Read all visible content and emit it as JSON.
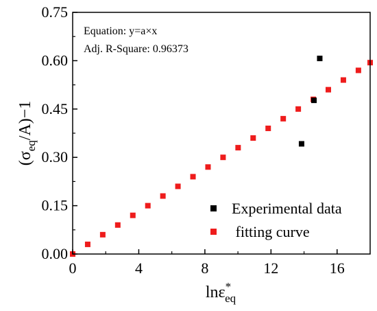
{
  "chart_data": {
    "type": "scatter",
    "xlabel": {
      "base": "lnε",
      "sup": "*",
      "sub": "eq"
    },
    "ylabel": {
      "open": "(σ",
      "sub": "eq",
      "close": "/A)−1"
    },
    "xlim": [
      0,
      18
    ],
    "ylim": [
      0,
      0.75
    ],
    "x_ticks": [
      0,
      4,
      8,
      12,
      16
    ],
    "x_tick_labels": [
      "0",
      "4",
      "8",
      "12",
      "16"
    ],
    "y_ticks": [
      0,
      0.15,
      0.3,
      0.45,
      0.6,
      0.75
    ],
    "y_tick_labels": [
      "0.00",
      "0.15",
      "0.30",
      "0.45",
      "0.60",
      "0.75"
    ],
    "grid": false,
    "legend_position": "bottom-right",
    "annotations": [
      "Equation: y=a×x",
      "Adj. R-Square: 0.96373"
    ],
    "series": [
      {
        "name": "Experimental data",
        "color": "#000000",
        "marker": "square",
        "x": [
          13.85,
          14.6,
          14.95
        ],
        "y": [
          0.342,
          0.477,
          0.607
        ]
      },
      {
        "name": " fitting curve",
        "color": "#ee1c1c",
        "marker": "square",
        "x": [
          0,
          0.91,
          1.82,
          2.73,
          3.64,
          4.55,
          5.46,
          6.37,
          7.28,
          8.19,
          9.1,
          10.01,
          10.92,
          11.83,
          12.74,
          13.65,
          14.56,
          15.47,
          16.38,
          17.29,
          18.0
        ],
        "y": [
          0,
          0.03,
          0.06,
          0.09,
          0.12,
          0.15,
          0.18,
          0.21,
          0.24,
          0.27,
          0.3,
          0.33,
          0.36,
          0.39,
          0.42,
          0.45,
          0.48,
          0.51,
          0.54,
          0.57,
          0.594
        ]
      }
    ]
  }
}
